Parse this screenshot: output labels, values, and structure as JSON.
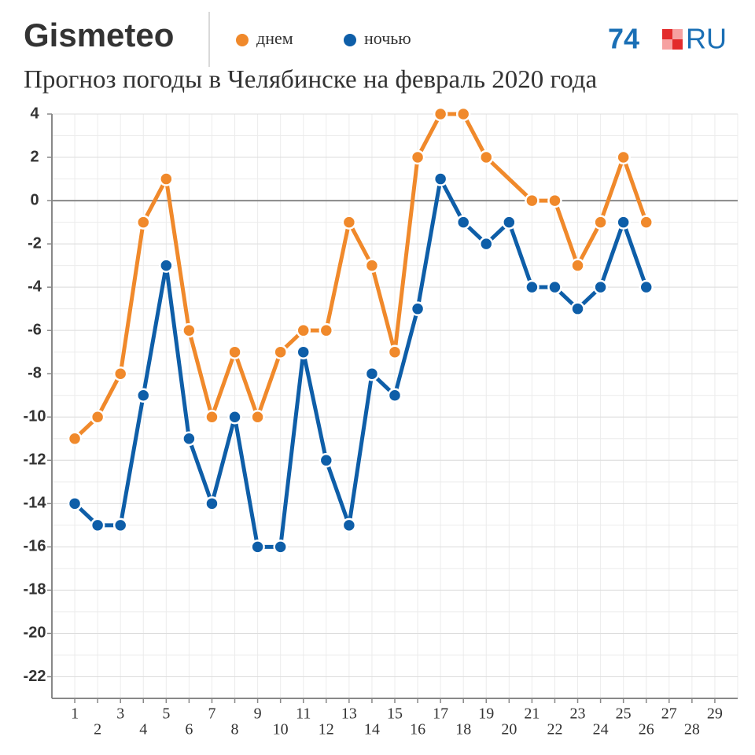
{
  "brand": "Gismeteo",
  "logo": {
    "number": "74",
    "suffix": "RU"
  },
  "chart_data": {
    "type": "line",
    "title": "Прогноз погоды в Челябинске на февраль 2020 года",
    "series": [
      {
        "name": "днем",
        "color": "#f0892b",
        "x": [
          1,
          2,
          3,
          4,
          5,
          6,
          7,
          8,
          9,
          10,
          11,
          12,
          13,
          14,
          15,
          16,
          17,
          18,
          19,
          21,
          22,
          23,
          24,
          25,
          26
        ],
        "values": [
          -11,
          -10,
          -8,
          -1,
          1,
          -6,
          -10,
          -7,
          -10,
          -7,
          -6,
          -6,
          -1,
          -3,
          -7,
          2,
          4,
          4,
          2,
          0,
          0,
          -3,
          -1,
          2,
          -1
        ]
      },
      {
        "name": "ночью",
        "color": "#0e5ea8",
        "x": [
          1,
          2,
          3,
          4,
          5,
          6,
          7,
          8,
          9,
          10,
          11,
          12,
          13,
          14,
          15,
          16,
          17,
          18,
          19,
          20,
          21,
          22,
          23,
          24,
          25,
          26
        ],
        "values": [
          -14,
          -15,
          -15,
          -9,
          -3,
          -11,
          -14,
          -10,
          -16,
          -16,
          -7,
          -12,
          -15,
          -8,
          -9,
          -5,
          1,
          -1,
          -2,
          -1,
          -4,
          -4,
          -5,
          -4,
          -1,
          -4
        ]
      }
    ],
    "xlim": [
      0,
      30
    ],
    "xticks": [
      1,
      2,
      3,
      4,
      5,
      6,
      7,
      8,
      9,
      10,
      11,
      12,
      13,
      14,
      15,
      16,
      17,
      18,
      19,
      20,
      21,
      22,
      23,
      24,
      25,
      26,
      27,
      28,
      29
    ],
    "ylim": [
      -23,
      4
    ],
    "yticks": [
      4,
      2,
      0,
      -2,
      -4,
      -6,
      -8,
      -10,
      -12,
      -14,
      -16,
      -18,
      -20,
      -22
    ],
    "grid": true
  }
}
